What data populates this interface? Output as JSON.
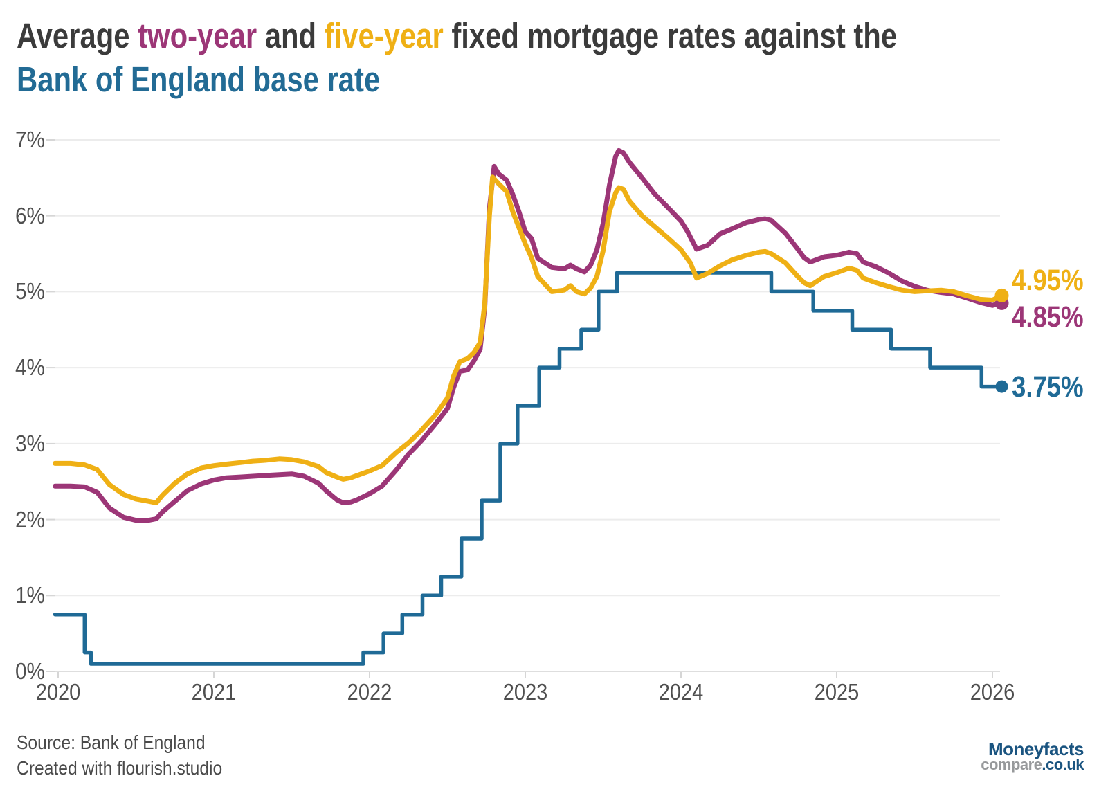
{
  "title": {
    "segments": [
      {
        "text": "Average ",
        "color": "#3b3b3b"
      },
      {
        "text": "two-year",
        "color": "#9c3677"
      },
      {
        "text": " and ",
        "color": "#3b3b3b"
      },
      {
        "text": "five-year",
        "color": "#efb015"
      },
      {
        "text": " fixed mortgage rates against the",
        "color": "#3b3b3b"
      }
    ],
    "line2": {
      "text": "Bank of England base rate",
      "color": "#226b95"
    }
  },
  "chart_data": {
    "type": "line",
    "title": "Average two-year and five-year fixed mortgage rates against the Bank of England base rate",
    "xlabel": "",
    "ylabel": "",
    "grid": "horizontal",
    "legend_position": "line-end-labels",
    "x_range": [
      2019.98,
      2026.06
    ],
    "y_range": [
      0,
      7
    ],
    "x_ticks": [
      {
        "value": 2020,
        "label": "2020"
      },
      {
        "value": 2021,
        "label": "2021"
      },
      {
        "value": 2022,
        "label": "2022"
      },
      {
        "value": 2023,
        "label": "2023"
      },
      {
        "value": 2024,
        "label": "2024"
      },
      {
        "value": 2025,
        "label": "2025"
      },
      {
        "value": 2026,
        "label": "2026"
      }
    ],
    "y_ticks": [
      {
        "value": 0,
        "label": "0%"
      },
      {
        "value": 1,
        "label": "1%"
      },
      {
        "value": 2,
        "label": "2%"
      },
      {
        "value": 3,
        "label": "3%"
      },
      {
        "value": 4,
        "label": "4%"
      },
      {
        "value": 5,
        "label": "5%"
      },
      {
        "value": 6,
        "label": "6%"
      },
      {
        "value": 7,
        "label": "7%"
      }
    ],
    "series": [
      {
        "name": "Bank of England base rate",
        "color": "#1f6a96",
        "style": "step",
        "end_label": "3.75%",
        "points": [
          [
            2019.98,
            0.75
          ],
          [
            2020.17,
            0.25
          ],
          [
            2020.21,
            0.1
          ],
          [
            2021.96,
            0.25
          ],
          [
            2022.09,
            0.5
          ],
          [
            2022.21,
            0.75
          ],
          [
            2022.34,
            1.0
          ],
          [
            2022.46,
            1.25
          ],
          [
            2022.59,
            1.75
          ],
          [
            2022.72,
            2.25
          ],
          [
            2022.84,
            3.0
          ],
          [
            2022.95,
            3.5
          ],
          [
            2023.09,
            4.0
          ],
          [
            2023.22,
            4.25
          ],
          [
            2023.36,
            4.5
          ],
          [
            2023.47,
            5.0
          ],
          [
            2023.59,
            5.25
          ],
          [
            2024.58,
            5.0
          ],
          [
            2024.85,
            4.75
          ],
          [
            2025.1,
            4.5
          ],
          [
            2025.35,
            4.25
          ],
          [
            2025.6,
            4.0
          ],
          [
            2025.93,
            3.75
          ]
        ]
      },
      {
        "name": "two-year fixed",
        "color": "#9c3677",
        "style": "line",
        "end_label": "4.85%",
        "points": [
          [
            2019.98,
            2.44
          ],
          [
            2020.08,
            2.44
          ],
          [
            2020.17,
            2.43
          ],
          [
            2020.25,
            2.36
          ],
          [
            2020.33,
            2.15
          ],
          [
            2020.42,
            2.03
          ],
          [
            2020.5,
            1.99
          ],
          [
            2020.58,
            1.99
          ],
          [
            2020.63,
            2.01
          ],
          [
            2020.67,
            2.1
          ],
          [
            2020.75,
            2.24
          ],
          [
            2020.83,
            2.38
          ],
          [
            2020.92,
            2.47
          ],
          [
            2021.0,
            2.52
          ],
          [
            2021.08,
            2.55
          ],
          [
            2021.17,
            2.56
          ],
          [
            2021.25,
            2.57
          ],
          [
            2021.33,
            2.58
          ],
          [
            2021.42,
            2.59
          ],
          [
            2021.5,
            2.6
          ],
          [
            2021.58,
            2.57
          ],
          [
            2021.67,
            2.48
          ],
          [
            2021.72,
            2.38
          ],
          [
            2021.79,
            2.26
          ],
          [
            2021.83,
            2.22
          ],
          [
            2021.88,
            2.23
          ],
          [
            2021.92,
            2.26
          ],
          [
            2022.0,
            2.34
          ],
          [
            2022.08,
            2.44
          ],
          [
            2022.17,
            2.65
          ],
          [
            2022.25,
            2.86
          ],
          [
            2022.33,
            3.03
          ],
          [
            2022.42,
            3.25
          ],
          [
            2022.5,
            3.46
          ],
          [
            2022.54,
            3.74
          ],
          [
            2022.58,
            3.95
          ],
          [
            2022.63,
            3.97
          ],
          [
            2022.67,
            4.09
          ],
          [
            2022.71,
            4.24
          ],
          [
            2022.74,
            4.8
          ],
          [
            2022.77,
            6.1
          ],
          [
            2022.8,
            6.65
          ],
          [
            2022.83,
            6.55
          ],
          [
            2022.88,
            6.47
          ],
          [
            2022.92,
            6.28
          ],
          [
            2022.96,
            6.05
          ],
          [
            2023.0,
            5.79
          ],
          [
            2023.04,
            5.7
          ],
          [
            2023.08,
            5.44
          ],
          [
            2023.17,
            5.32
          ],
          [
            2023.25,
            5.3
          ],
          [
            2023.29,
            5.35
          ],
          [
            2023.33,
            5.3
          ],
          [
            2023.38,
            5.26
          ],
          [
            2023.42,
            5.35
          ],
          [
            2023.46,
            5.55
          ],
          [
            2023.5,
            5.9
          ],
          [
            2023.54,
            6.4
          ],
          [
            2023.58,
            6.78
          ],
          [
            2023.6,
            6.86
          ],
          [
            2023.63,
            6.83
          ],
          [
            2023.67,
            6.7
          ],
          [
            2023.75,
            6.5
          ],
          [
            2023.83,
            6.29
          ],
          [
            2023.92,
            6.1
          ],
          [
            2024.0,
            5.93
          ],
          [
            2024.04,
            5.8
          ],
          [
            2024.1,
            5.56
          ],
          [
            2024.17,
            5.61
          ],
          [
            2024.25,
            5.76
          ],
          [
            2024.33,
            5.83
          ],
          [
            2024.42,
            5.91
          ],
          [
            2024.5,
            5.95
          ],
          [
            2024.54,
            5.96
          ],
          [
            2024.58,
            5.94
          ],
          [
            2024.67,
            5.77
          ],
          [
            2024.75,
            5.56
          ],
          [
            2024.79,
            5.45
          ],
          [
            2024.83,
            5.39
          ],
          [
            2024.92,
            5.46
          ],
          [
            2025.0,
            5.48
          ],
          [
            2025.08,
            5.52
          ],
          [
            2025.13,
            5.5
          ],
          [
            2025.17,
            5.39
          ],
          [
            2025.25,
            5.33
          ],
          [
            2025.33,
            5.25
          ],
          [
            2025.42,
            5.14
          ],
          [
            2025.5,
            5.07
          ],
          [
            2025.58,
            5.02
          ],
          [
            2025.67,
            4.99
          ],
          [
            2025.75,
            4.97
          ],
          [
            2025.83,
            4.92
          ],
          [
            2025.92,
            4.86
          ],
          [
            2026.0,
            4.82
          ],
          [
            2026.06,
            4.85
          ]
        ]
      },
      {
        "name": "five-year fixed",
        "color": "#efb015",
        "style": "line",
        "end_label": "4.95%",
        "points": [
          [
            2019.98,
            2.74
          ],
          [
            2020.08,
            2.74
          ],
          [
            2020.17,
            2.72
          ],
          [
            2020.25,
            2.66
          ],
          [
            2020.33,
            2.46
          ],
          [
            2020.42,
            2.33
          ],
          [
            2020.5,
            2.27
          ],
          [
            2020.58,
            2.24
          ],
          [
            2020.63,
            2.22
          ],
          [
            2020.67,
            2.32
          ],
          [
            2020.75,
            2.48
          ],
          [
            2020.83,
            2.6
          ],
          [
            2020.92,
            2.68
          ],
          [
            2021.0,
            2.71
          ],
          [
            2021.08,
            2.73
          ],
          [
            2021.17,
            2.75
          ],
          [
            2021.25,
            2.77
          ],
          [
            2021.33,
            2.78
          ],
          [
            2021.42,
            2.8
          ],
          [
            2021.5,
            2.79
          ],
          [
            2021.58,
            2.76
          ],
          [
            2021.67,
            2.7
          ],
          [
            2021.72,
            2.62
          ],
          [
            2021.79,
            2.56
          ],
          [
            2021.83,
            2.53
          ],
          [
            2021.88,
            2.55
          ],
          [
            2021.92,
            2.58
          ],
          [
            2022.0,
            2.64
          ],
          [
            2022.08,
            2.71
          ],
          [
            2022.17,
            2.88
          ],
          [
            2022.25,
            3.01
          ],
          [
            2022.33,
            3.17
          ],
          [
            2022.42,
            3.37
          ],
          [
            2022.5,
            3.6
          ],
          [
            2022.54,
            3.89
          ],
          [
            2022.58,
            4.08
          ],
          [
            2022.63,
            4.12
          ],
          [
            2022.67,
            4.2
          ],
          [
            2022.71,
            4.33
          ],
          [
            2022.74,
            4.85
          ],
          [
            2022.77,
            6.0
          ],
          [
            2022.79,
            6.51
          ],
          [
            2022.83,
            6.42
          ],
          [
            2022.88,
            6.32
          ],
          [
            2022.92,
            6.05
          ],
          [
            2023.0,
            5.63
          ],
          [
            2023.04,
            5.45
          ],
          [
            2023.08,
            5.2
          ],
          [
            2023.17,
            5.0
          ],
          [
            2023.25,
            5.02
          ],
          [
            2023.29,
            5.08
          ],
          [
            2023.33,
            5.0
          ],
          [
            2023.38,
            4.97
          ],
          [
            2023.42,
            5.05
          ],
          [
            2023.46,
            5.2
          ],
          [
            2023.5,
            5.54
          ],
          [
            2023.54,
            6.05
          ],
          [
            2023.58,
            6.3
          ],
          [
            2023.6,
            6.37
          ],
          [
            2023.63,
            6.35
          ],
          [
            2023.67,
            6.19
          ],
          [
            2023.75,
            6.0
          ],
          [
            2023.83,
            5.86
          ],
          [
            2023.92,
            5.7
          ],
          [
            2024.0,
            5.55
          ],
          [
            2024.06,
            5.38
          ],
          [
            2024.1,
            5.18
          ],
          [
            2024.17,
            5.24
          ],
          [
            2024.25,
            5.34
          ],
          [
            2024.33,
            5.42
          ],
          [
            2024.42,
            5.48
          ],
          [
            2024.5,
            5.52
          ],
          [
            2024.54,
            5.53
          ],
          [
            2024.58,
            5.5
          ],
          [
            2024.67,
            5.38
          ],
          [
            2024.75,
            5.2
          ],
          [
            2024.79,
            5.12
          ],
          [
            2024.83,
            5.08
          ],
          [
            2024.92,
            5.2
          ],
          [
            2025.0,
            5.25
          ],
          [
            2025.08,
            5.31
          ],
          [
            2025.13,
            5.28
          ],
          [
            2025.17,
            5.18
          ],
          [
            2025.25,
            5.12
          ],
          [
            2025.33,
            5.07
          ],
          [
            2025.42,
            5.02
          ],
          [
            2025.5,
            5.0
          ],
          [
            2025.58,
            5.01
          ],
          [
            2025.67,
            5.02
          ],
          [
            2025.75,
            5.0
          ],
          [
            2025.83,
            4.95
          ],
          [
            2025.92,
            4.9
          ],
          [
            2026.0,
            4.89
          ],
          [
            2026.06,
            4.95
          ]
        ]
      }
    ]
  },
  "footer": {
    "source": "Source: Bank of England",
    "credit": "Created with flourish.studio"
  },
  "logo": {
    "line1": "Moneyfacts",
    "line2_gray": "compare",
    "line2_blue": ".co.uk",
    "navy": "#1a5480",
    "gray": "#97999b"
  },
  "colors": {
    "gridline": "#ececec",
    "gridline_zero": "#dedede",
    "tick": "#d6d6d6",
    "axis_text": "#4f4f4f"
  }
}
